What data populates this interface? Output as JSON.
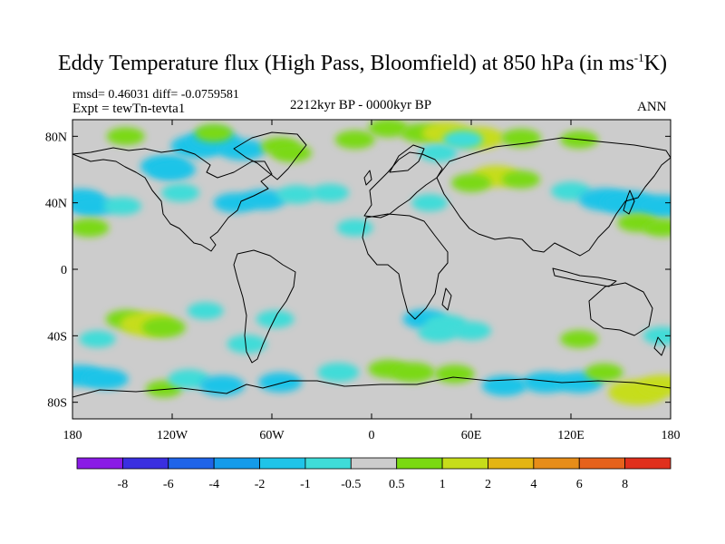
{
  "chart_data": {
    "type": "heatmap",
    "title": "Eddy Temperature flux (High Pass, Bloomfield) at 850 hPa (in ms",
    "title_sup": "-1",
    "title_end": "K)",
    "stats": "rmsd= 0.46031  diff= -0.0759581",
    "experiment": "Expt = tewTn-tevta1",
    "period": "2212kyr BP - 0000kyr BP",
    "season": "ANN",
    "x_axis": {
      "range": [
        -180,
        180
      ],
      "ticks": [
        {
          "value": -180,
          "label": "180"
        },
        {
          "value": -120,
          "label": "120W"
        },
        {
          "value": -60,
          "label": "60W"
        },
        {
          "value": 0,
          "label": "0"
        },
        {
          "value": 60,
          "label": "60E"
        },
        {
          "value": 120,
          "label": "120E"
        },
        {
          "value": 180,
          "label": "180"
        }
      ]
    },
    "y_axis": {
      "range": [
        -90,
        90
      ],
      "ticks": [
        {
          "value": 80,
          "label": "80N"
        },
        {
          "value": 40,
          "label": "40N"
        },
        {
          "value": 0,
          "label": "0"
        },
        {
          "value": -40,
          "label": "40S"
        },
        {
          "value": -80,
          "label": "80S"
        }
      ]
    },
    "colorbar": {
      "labels": [
        "-8",
        "-6",
        "-4",
        "-2",
        "-1",
        "-0.5",
        "0.5",
        "1",
        "2",
        "4",
        "6",
        "8"
      ],
      "colors": [
        "#8a1be6",
        "#3a2fe0",
        "#1f64e8",
        "#149bea",
        "#1fc4e8",
        "#3fdcd8",
        "#cccccc",
        "#7ad912",
        "#c6dd1a",
        "#e4b513",
        "#e78d19",
        "#e6621c",
        "#e0301d"
      ]
    },
    "anomalies": [
      {
        "lon": -125,
        "lat": 62,
        "value": -1.2
      },
      {
        "lon": -120,
        "lat": 60,
        "value": -1.2
      },
      {
        "lon": -105,
        "lat": 74,
        "value": -1.5
      },
      {
        "lon": -95,
        "lat": 77,
        "value": -1.5
      },
      {
        "lon": -78,
        "lat": 72,
        "value": -1.2
      },
      {
        "lon": -95,
        "lat": 82,
        "value": 0.7
      },
      {
        "lon": -148,
        "lat": 80,
        "value": 0.7
      },
      {
        "lon": -55,
        "lat": 74,
        "value": 0.7
      },
      {
        "lon": -48,
        "lat": 70,
        "value": 0.8
      },
      {
        "lon": -10,
        "lat": 78,
        "value": 0.8
      },
      {
        "lon": 10,
        "lat": 85,
        "value": 0.8
      },
      {
        "lon": 30,
        "lat": 82,
        "value": 0.9
      },
      {
        "lon": 45,
        "lat": 82,
        "value": 1.3
      },
      {
        "lon": 65,
        "lat": 79,
        "value": 1.3
      },
      {
        "lon": 90,
        "lat": 79,
        "value": 0.8
      },
      {
        "lon": 125,
        "lat": 78,
        "value": 0.7
      },
      {
        "lon": 40,
        "lat": 70,
        "value": -0.7
      },
      {
        "lon": 55,
        "lat": 78,
        "value": -0.8
      },
      {
        "lon": 75,
        "lat": 56,
        "value": 1.2
      },
      {
        "lon": 60,
        "lat": 52,
        "value": 0.8
      },
      {
        "lon": 90,
        "lat": 54,
        "value": 0.7
      },
      {
        "lon": 120,
        "lat": 47,
        "value": -0.8
      },
      {
        "lon": 140,
        "lat": 42,
        "value": -1.4
      },
      {
        "lon": 155,
        "lat": 40,
        "value": -1.6
      },
      {
        "lon": 175,
        "lat": 38,
        "value": -1.4
      },
      {
        "lon": 160,
        "lat": 28,
        "value": 0.8
      },
      {
        "lon": 175,
        "lat": 25,
        "value": 0.7
      },
      {
        "lon": -175,
        "lat": 42,
        "value": -1.2
      },
      {
        "lon": -168,
        "lat": 38,
        "value": -1.0
      },
      {
        "lon": -170,
        "lat": 25,
        "value": 0.8
      },
      {
        "lon": -150,
        "lat": 38,
        "value": -0.7
      },
      {
        "lon": -115,
        "lat": 46,
        "value": -0.7
      },
      {
        "lon": -82,
        "lat": 40,
        "value": -1.0
      },
      {
        "lon": -65,
        "lat": 42,
        "value": -1.1
      },
      {
        "lon": -45,
        "lat": 45,
        "value": -0.8
      },
      {
        "lon": -25,
        "lat": 46,
        "value": -0.7
      },
      {
        "lon": -10,
        "lat": 25,
        "value": -0.6
      },
      {
        "lon": 35,
        "lat": 40,
        "value": -0.6
      },
      {
        "lon": -148,
        "lat": -30,
        "value": 0.8
      },
      {
        "lon": -135,
        "lat": -33,
        "value": 1.6
      },
      {
        "lon": -125,
        "lat": -35,
        "value": 1.0
      },
      {
        "lon": -165,
        "lat": -42,
        "value": -0.6
      },
      {
        "lon": -100,
        "lat": -25,
        "value": -0.6
      },
      {
        "lon": -75,
        "lat": -45,
        "value": -0.8
      },
      {
        "lon": -58,
        "lat": -30,
        "value": -0.7
      },
      {
        "lon": 32,
        "lat": -30,
        "value": -1.0
      },
      {
        "lon": 45,
        "lat": -33,
        "value": -0.9
      },
      {
        "lon": 60,
        "lat": -37,
        "value": -0.8
      },
      {
        "lon": 40,
        "lat": -38,
        "value": -0.8
      },
      {
        "lon": 125,
        "lat": -42,
        "value": 0.7
      },
      {
        "lon": 175,
        "lat": -40,
        "value": -0.7
      },
      {
        "lon": -175,
        "lat": -64,
        "value": -1.2
      },
      {
        "lon": -160,
        "lat": -66,
        "value": -1.1
      },
      {
        "lon": -125,
        "lat": -72,
        "value": 0.6
      },
      {
        "lon": -110,
        "lat": -66,
        "value": -0.9
      },
      {
        "lon": -90,
        "lat": -70,
        "value": -1.1
      },
      {
        "lon": -55,
        "lat": -68,
        "value": -1.0
      },
      {
        "lon": -20,
        "lat": -62,
        "value": -0.9
      },
      {
        "lon": 10,
        "lat": -60,
        "value": 0.8
      },
      {
        "lon": 25,
        "lat": -62,
        "value": 1.0
      },
      {
        "lon": 50,
        "lat": -63,
        "value": 0.8
      },
      {
        "lon": 80,
        "lat": -70,
        "value": -1.1
      },
      {
        "lon": 105,
        "lat": -68,
        "value": -1.2
      },
      {
        "lon": 125,
        "lat": -68,
        "value": -1.2
      },
      {
        "lon": 140,
        "lat": -62,
        "value": 0.7
      },
      {
        "lon": 160,
        "lat": -74,
        "value": 1.8
      },
      {
        "lon": 175,
        "lat": -70,
        "value": 1.2
      }
    ]
  }
}
